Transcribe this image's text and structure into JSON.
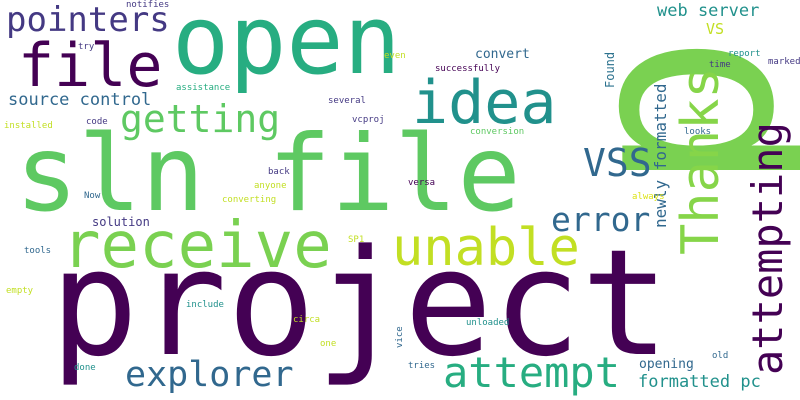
{
  "palette": {
    "dark_purple": "#440154",
    "indigo": "#3b528b",
    "blue": "#31688e",
    "teal": "#21918c",
    "green": "#27ad81",
    "light_green": "#5ec962",
    "lime": "#addc30",
    "yellow": "#dde318"
  },
  "words": {
    "p": "p",
    "project": "project",
    "sln_file": "sln file",
    "open": "open",
    "receive": "receive",
    "idea": "idea",
    "file": "file",
    "unable": "unable",
    "thanks": "Thanks",
    "attempting": "attempting",
    "getting": "getting",
    "attempt": "attempt",
    "pointers": "pointers",
    "vss": "VSS",
    "explorer": "explorer",
    "error": "error",
    "source_control": "source control",
    "newly_formatted": "newly formatted",
    "formatted_pc": "formatted pc",
    "web_server": "web server",
    "vs": "VS",
    "convert": "convert",
    "opening": "opening",
    "solution": "solution",
    "found": "Found",
    "notifies": "notifies",
    "try": "try",
    "report": "report",
    "time": "time",
    "marked": "marked",
    "even": "even",
    "successfully": "successfully",
    "assistance": "assistance",
    "several": "several",
    "installed": "installed",
    "code": "code",
    "vcproj": "vcproj",
    "conversion": "conversion",
    "looks": "looks",
    "back": "back",
    "anyone": "anyone",
    "versa": "versa",
    "now": "Now",
    "converting": "converting",
    "always": "always",
    "sp1": "SP1",
    "tools": "tools",
    "empty": "empty",
    "include": "include",
    "circa": "circa",
    "unloaded": "unloaded",
    "one": "one",
    "vice": "vice",
    "old": "old",
    "done": "done",
    "tries": "tries"
  }
}
